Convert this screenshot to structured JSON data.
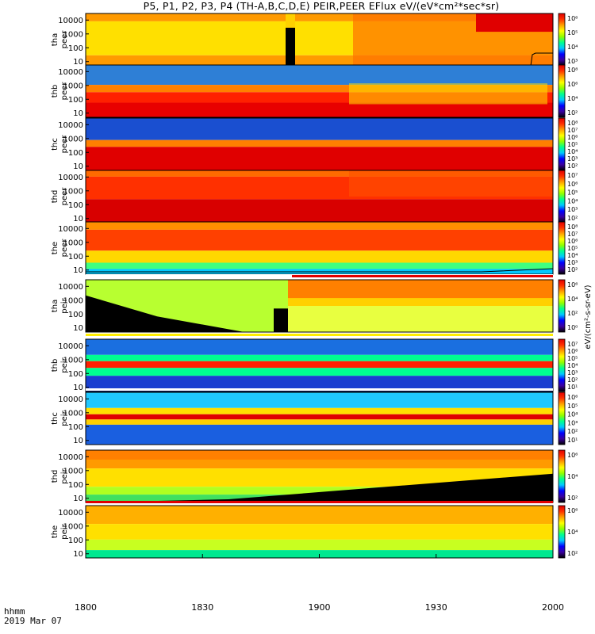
{
  "chart_data": {
    "type": "heatmap",
    "title": "P5, P1, P2, P3, P4 (TH-A,B,C,D,E) PEIR,PEER EFlux eV/(eV*cm²*sec*sr)",
    "xlabel": "hhmm",
    "x_sublabel": "2019 Mar 07",
    "x_ticks": [
      "1800",
      "1830",
      "1900",
      "1930",
      "2000"
    ],
    "xlim": [
      "18:00",
      "20:00"
    ],
    "y_scale": "log",
    "ylim": [
      5,
      30000
    ],
    "colorbar_label": "eV/(cm²-s-sr-eV)",
    "colorbar_colors": [
      "#000000",
      "#3a00a0",
      "#0000ff",
      "#00c8ff",
      "#00ff90",
      "#90ff00",
      "#ffff00",
      "#ffa000",
      "#ff3000",
      "#e00000"
    ],
    "panels": [
      {
        "id": "tha_peer",
        "label": [
          "tha",
          "peer"
        ],
        "yticks": [
          "10000",
          "1000",
          "100",
          "10"
        ],
        "cbar_ticks": [
          "10⁶",
          "10⁵",
          "10⁴",
          "10³"
        ],
        "clim_exp": [
          2.5,
          6.5
        ]
      },
      {
        "id": "thb_peer",
        "label": [
          "thb",
          "peer"
        ],
        "yticks": [
          "10000",
          "1000",
          "100",
          "10"
        ],
        "cbar_ticks": [
          "10⁸",
          "10⁶",
          "10⁴",
          "10²"
        ],
        "clim_exp": [
          1.5,
          8.5
        ]
      },
      {
        "id": "thc_peer",
        "label": [
          "thc",
          "peer"
        ],
        "yticks": [
          "10000",
          "1000",
          "100",
          "10"
        ],
        "cbar_ticks": [
          "10⁸",
          "10⁷",
          "10⁶",
          "10⁵",
          "10⁴",
          "10³",
          "10²"
        ],
        "clim_exp": [
          1.5,
          8.5
        ]
      },
      {
        "id": "thd_peer",
        "label": [
          "thd",
          "peer"
        ],
        "yticks": [
          "10000",
          "1000",
          "100",
          "10"
        ],
        "cbar_ticks": [
          "10⁷",
          "10⁶",
          "10⁵",
          "10⁴",
          "10³",
          "10²"
        ],
        "clim_exp": [
          1.5,
          7.5
        ]
      },
      {
        "id": "the_peer",
        "label": [
          "the",
          "peer"
        ],
        "yticks": [
          "10000",
          "1000",
          "100",
          "10"
        ],
        "cbar_ticks": [
          "10⁸",
          "10⁷",
          "10⁶",
          "10⁵",
          "10⁴",
          "10³",
          "10²"
        ],
        "clim_exp": [
          1.5,
          8.5
        ]
      },
      {
        "id": "tha_peir",
        "label": [
          "tha",
          "peir"
        ],
        "yticks": [
          "10000",
          "1000",
          "100",
          "10"
        ],
        "cbar_ticks": [
          "10⁶",
          "10⁴",
          "10²",
          "10⁰"
        ],
        "clim_exp": [
          -0.5,
          6.5
        ]
      },
      {
        "id": "thb_peir",
        "label": [
          "thb",
          "peir"
        ],
        "yticks": [
          "10000",
          "1000",
          "100",
          "10"
        ],
        "cbar_ticks": [
          "10⁷",
          "10⁶",
          "10⁵",
          "10⁴",
          "10³",
          "10²",
          "10¹"
        ],
        "clim_exp": [
          0.5,
          7.5
        ]
      },
      {
        "id": "thc_peir",
        "label": [
          "thc",
          "peir"
        ],
        "yticks": [
          "10000",
          "1000",
          "100",
          "10"
        ],
        "cbar_ticks": [
          "10⁶",
          "10⁵",
          "10⁴",
          "10³",
          "10²",
          "10¹"
        ],
        "clim_exp": [
          0.5,
          6.5
        ]
      },
      {
        "id": "thd_peir",
        "label": [
          "thd",
          "peir"
        ],
        "yticks": [
          "10000",
          "1000",
          "100",
          "10"
        ],
        "cbar_ticks": [
          "10⁶",
          "10⁴",
          "10²"
        ],
        "clim_exp": [
          1.5,
          6.5
        ]
      },
      {
        "id": "the_peir",
        "label": [
          "the",
          "peir"
        ],
        "yticks": [
          "10000",
          "1000",
          "100",
          "10"
        ],
        "cbar_ticks": [
          "10⁶",
          "10⁴",
          "10²"
        ],
        "clim_exp": [
          1.5,
          6.5
        ]
      }
    ]
  }
}
